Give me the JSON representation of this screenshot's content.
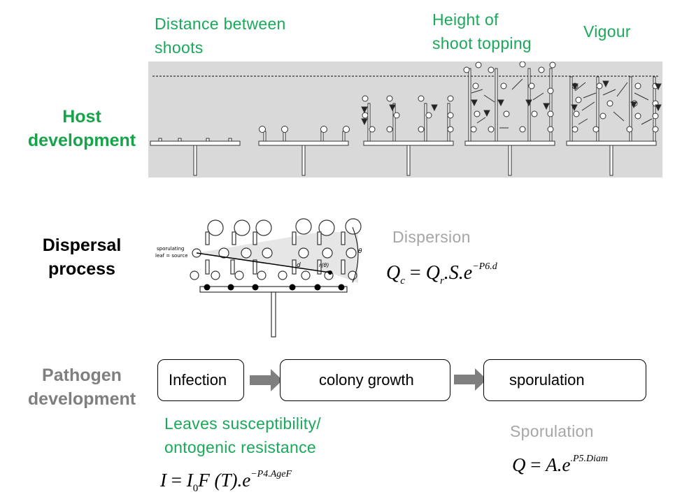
{
  "host": {
    "label_line1": "Host",
    "label_line2": "development",
    "annotations": {
      "distance_line1": "Distance between",
      "distance_line2": "shoots",
      "height_line1": "Height of",
      "height_line2": "shoot topping",
      "vigour": "Vigour"
    }
  },
  "dispersal": {
    "label_line1": "Dispersal",
    "label_line2": "process",
    "source_label_line1": "sporulating",
    "source_label_line2": "leaf = source",
    "angle_symbol": "θ",
    "distance_symbol": "d",
    "r_theta": "r(θ)",
    "annotation": "Dispersion",
    "equation": {
      "lhs": "Q",
      "lhs_sub": "c",
      "eq": " = ",
      "q": "Q",
      "q_sub": "r",
      "mid": ".S.e",
      "exponent": "−P6.d"
    }
  },
  "pathogen": {
    "label_line1": "Pathogen",
    "label_line2": "development",
    "steps": [
      "Infection",
      "colony growth",
      "sporulation"
    ],
    "susceptibility_line1": "Leaves susceptibility/",
    "susceptibility_line2": "ontogenic resistance",
    "infection_equation": {
      "lhs": "I",
      "eq": " = ",
      "i": "I",
      "i_sub": "0",
      "mid": "F (T).e",
      "exponent": "−P4.AgeF"
    },
    "sporulation_annotation": "Sporulation",
    "sporulation_equation": {
      "lhs": "Q",
      "eq": " = ",
      "mid": "A.e",
      "exponent": ".P5.Diam"
    }
  },
  "colors": {
    "host_green": "#17a34a",
    "pathogen_grey": "#7f7f7f",
    "annotation_light_grey": "#a6a6a6",
    "arrow_grey": "#7f7f7f",
    "panel_grey": "#d9d9d9"
  }
}
